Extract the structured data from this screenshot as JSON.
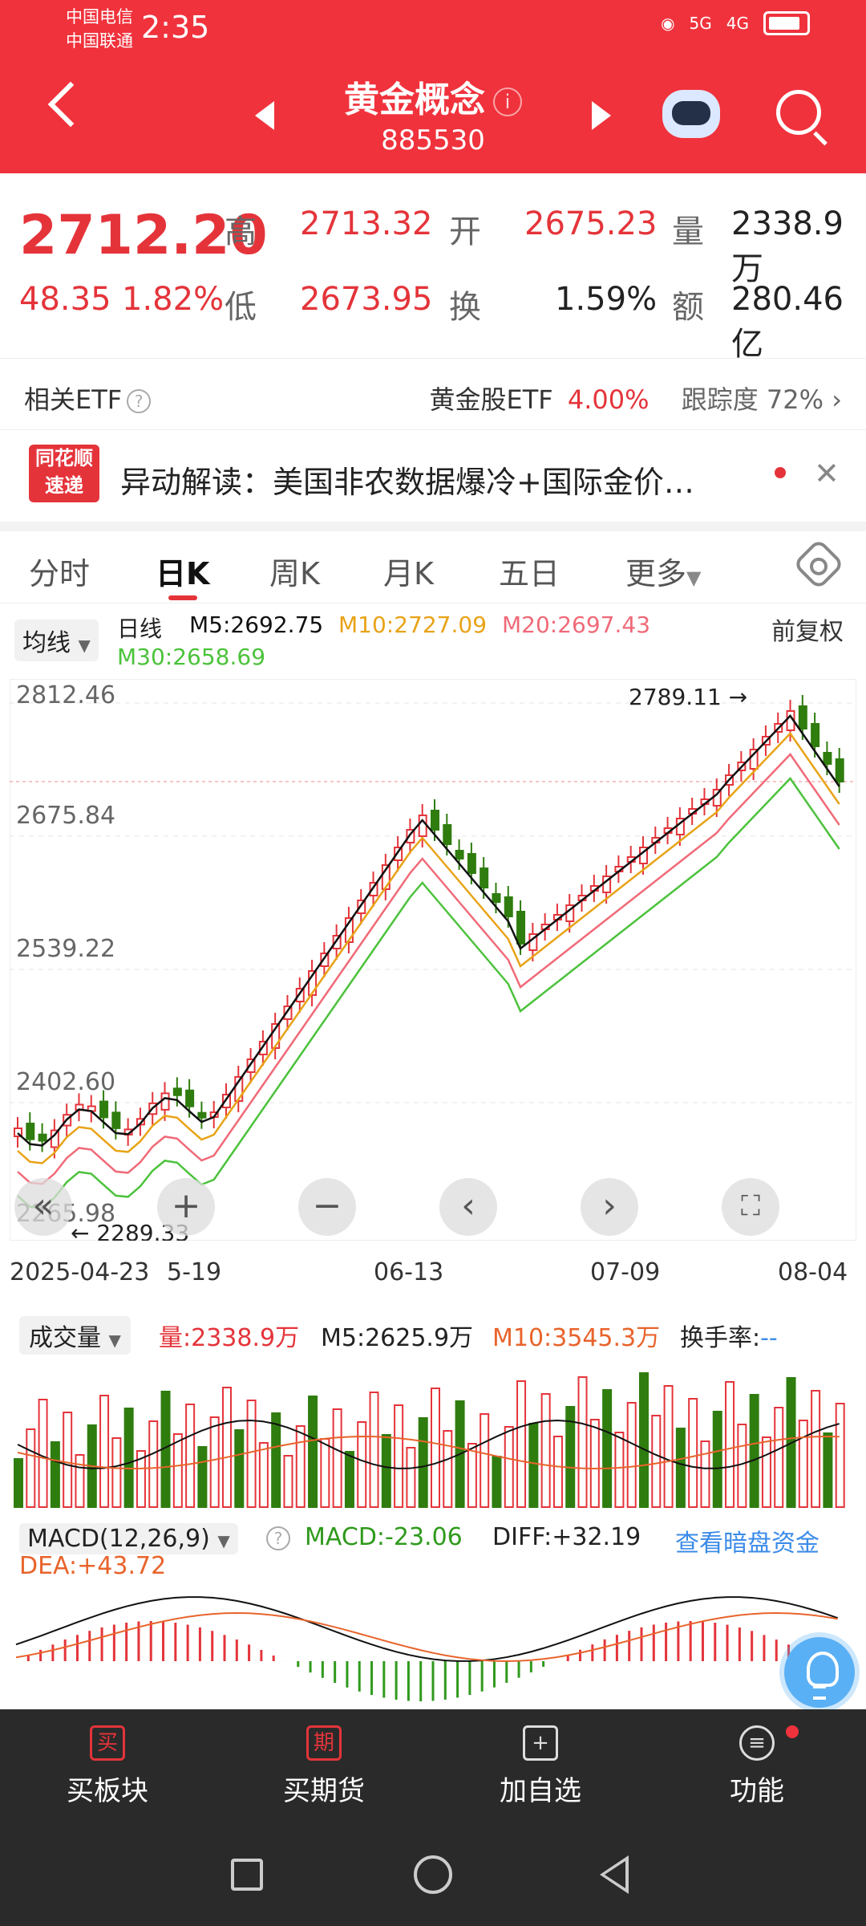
{
  "status": {
    "carrier1": "中国电信",
    "carrier2": "中国联通",
    "time": "2:35",
    "signal1": "5G",
    "signal2": "4G"
  },
  "header": {
    "title": "黄金概念",
    "code": "885530"
  },
  "quote": {
    "price": "2712.20",
    "change": "48.35",
    "change_pct": "1.82%",
    "high_label": "高",
    "high": "2713.32",
    "open_label": "开",
    "open": "2675.23",
    "vol_label": "量",
    "vol": "2338.9万",
    "low_label": "低",
    "low": "2673.95",
    "turnover_label": "换",
    "turnover": "1.59%",
    "amount_label": "额",
    "amount": "280.46亿"
  },
  "etf": {
    "label": "相关ETF",
    "name": "黄金股ETF",
    "pct": "4.00%",
    "track_label": "跟踪度",
    "track": "72%"
  },
  "news": {
    "logo_top": "同花顺",
    "logo_bottom": "速递",
    "text": "异动解读：美国非农数据爆冷+国际金价…"
  },
  "tabs": [
    "分时",
    "日K",
    "周K",
    "月K",
    "五日",
    "更多"
  ],
  "ma": {
    "select": "均线",
    "type": "日线",
    "m5": "M5:2692.75",
    "m10": "M10:2727.09",
    "m20": "M20:2697.43",
    "m30": "M30:2658.69",
    "right": "前复权"
  },
  "kchart": {
    "y_labels": [
      "2812.46",
      "2675.84",
      "2539.22",
      "2402.60",
      "2265.98"
    ],
    "high_mark": "2789.11",
    "low_mark": "2289.33"
  },
  "dates": [
    "2025-04-23",
    "5-19",
    "06-13",
    "07-09",
    "08-04"
  ],
  "volume": {
    "select": "成交量",
    "vol": "量:2338.9万",
    "m5": "M5:2625.9万",
    "m10": "M10:3545.3万",
    "turn": "换手率:",
    "turn_val": "--"
  },
  "macd": {
    "select": "MACD(12,26,9)",
    "macd": "MACD:-23.06",
    "diff": "DIFF:+32.19",
    "link": "查看暗盘资金",
    "dea": "DEA:+43.72"
  },
  "bottom": [
    {
      "icon": "买",
      "label": "买板块"
    },
    {
      "icon": "期",
      "label": "买期货"
    },
    {
      "icon": "+",
      "label": "加自选"
    },
    {
      "icon": "≡",
      "label": "功能"
    }
  ],
  "colors": {
    "brand": "#f0323c",
    "up": "#e4343a",
    "down": "#2f7d0f",
    "m5": "#111111",
    "m10": "#e8a317",
    "m20": "#f06a78",
    "m30": "#4cc23c"
  }
}
